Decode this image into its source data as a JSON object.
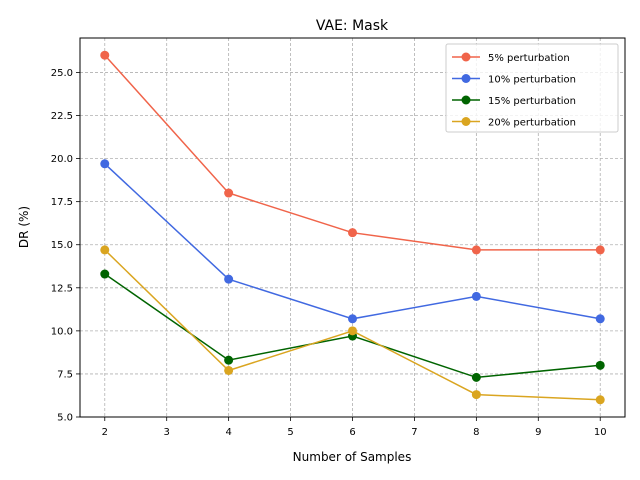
{
  "chart_data": {
    "type": "line",
    "title": "VAE: Mask",
    "xlabel": "Number of Samples",
    "ylabel": "DR (%)",
    "x": [
      2,
      4,
      6,
      8,
      10
    ],
    "xlim": [
      1.6,
      10.4
    ],
    "ylim": [
      5.0,
      27.0
    ],
    "xticks": [
      2,
      3,
      4,
      5,
      6,
      7,
      8,
      9,
      10
    ],
    "yticks": [
      5.0,
      7.5,
      10.0,
      12.5,
      15.0,
      17.5,
      20.0,
      22.5,
      25.0
    ],
    "xtick_labels": [
      "2",
      "3",
      "4",
      "5",
      "6",
      "7",
      "8",
      "9",
      "10"
    ],
    "ytick_labels": [
      "5.0",
      "7.5",
      "10.0",
      "12.5",
      "15.0",
      "17.5",
      "20.0",
      "22.5",
      "25.0"
    ],
    "grid": true,
    "grid_style": "dashed",
    "legend_position": "top-right",
    "series": [
      {
        "name": "5% perturbation",
        "color": "#f0644a",
        "values": [
          26.0,
          18.0,
          15.7,
          14.7,
          14.7
        ]
      },
      {
        "name": "10% perturbation",
        "color": "#4169e1",
        "values": [
          19.7,
          13.0,
          10.7,
          12.0,
          10.7
        ]
      },
      {
        "name": "15% perturbation",
        "color": "#006400",
        "values": [
          13.3,
          8.3,
          9.7,
          7.3,
          8.0
        ]
      },
      {
        "name": "20% perturbation",
        "color": "#daa520",
        "values": [
          14.7,
          7.7,
          10.0,
          6.3,
          6.0
        ]
      }
    ]
  }
}
